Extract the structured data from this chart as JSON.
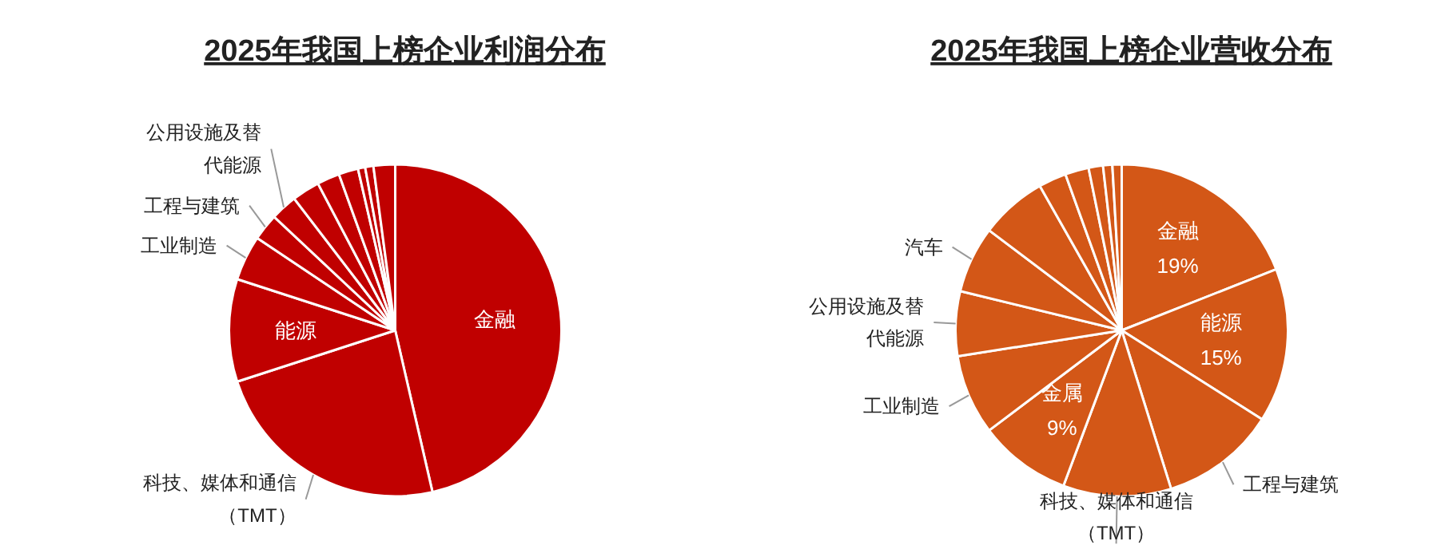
{
  "chart_data": [
    {
      "type": "pie",
      "title": "2025年我国上榜企业利润分布",
      "categories": [
        "金融",
        "科技、媒体和通信（TMT）",
        "能源",
        "工业制造",
        "工程与建筑",
        "公用设施及替代能源",
        null,
        null,
        null,
        null,
        null,
        null
      ],
      "values": [
        46.4,
        23.6,
        10.0,
        4.4,
        2.6,
        2.6,
        2.7,
        2.2,
        1.9,
        0.7,
        0.8,
        2.1
      ],
      "colors": [
        "#c00000",
        "#c00000",
        "#c00000",
        "#c00000",
        "#c00000",
        "#c00000",
        "#c00000",
        "#c00000",
        "#c00000",
        "#c00000",
        "#c00000",
        "#c00000"
      ]
    },
    {
      "type": "pie",
      "title": "2025年我国上榜企业营收分布",
      "categories": [
        "金融",
        "能源",
        "工程与建筑",
        "科技、媒体和通信（TMT）",
        "金属",
        "工业制造",
        "公用设施及替代能源",
        "汽车",
        null,
        null,
        null,
        null,
        null,
        null
      ],
      "values": [
        19,
        15,
        11.2,
        10.5,
        9,
        7.8,
        6.3,
        6.5,
        6.5,
        2.7,
        2.3,
        1.4,
        0.9,
        0.9
      ],
      "value_labels": [
        "19%",
        "15%",
        null,
        null,
        "9%",
        null,
        null,
        null,
        null,
        null,
        null,
        null,
        null,
        null
      ],
      "colors": [
        "#d35717",
        "#d35717",
        "#d35717",
        "#d35717",
        "#d35717",
        "#d35717",
        "#d35717",
        "#d35717",
        "#d35717",
        "#d35717",
        "#d35717",
        "#d35717",
        "#d35717",
        "#d35717"
      ]
    }
  ]
}
